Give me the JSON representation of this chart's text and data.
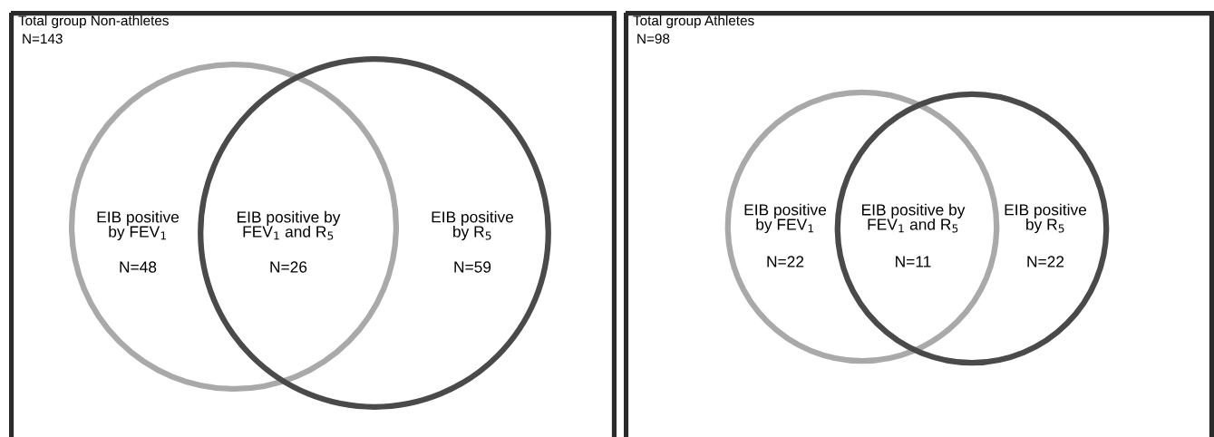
{
  "chart_data": [
    {
      "type": "other",
      "title": "Total group Non-athletes",
      "subtitle": "N=143",
      "categories": [
        "EIB positive\nby FEV$_{1}$",
        "EIB positive by\nFEV$_{1}$ and R$_{5}$",
        "EIB positive\nby R$_{5}$"
      ],
      "series": [
        {
          "color": "#a9a9a9",
          "values": [
            48,
            26,
            null
          ],
          "value_labels": [
            "N=48",
            "N=26",
            null
          ]
        },
        {
          "color": "#4a4a4a",
          "values": [
            null,
            null,
            59
          ],
          "value_labels": [
            null,
            null,
            "N=59"
          ]
        }
      ]
    },
    {
      "type": "other",
      "title": "Total group Athletes",
      "subtitle": "N=98",
      "categories": [
        "EIB positive\nby FEV$_{1}$",
        "EIB positive by\nFEV$_{1}$ and R$_{5}$",
        "EIB positive\nby R$_{5}$"
      ],
      "series": [
        {
          "color": "#a9a9a9",
          "values": [
            22,
            11,
            null
          ],
          "value_labels": [
            "N=22",
            "N=11",
            null
          ]
        },
        {
          "color": "#4a4a4a",
          "values": [
            null,
            null,
            22
          ],
          "value_labels": [
            null,
            null,
            "N=22"
          ]
        }
      ]
    }
  ]
}
